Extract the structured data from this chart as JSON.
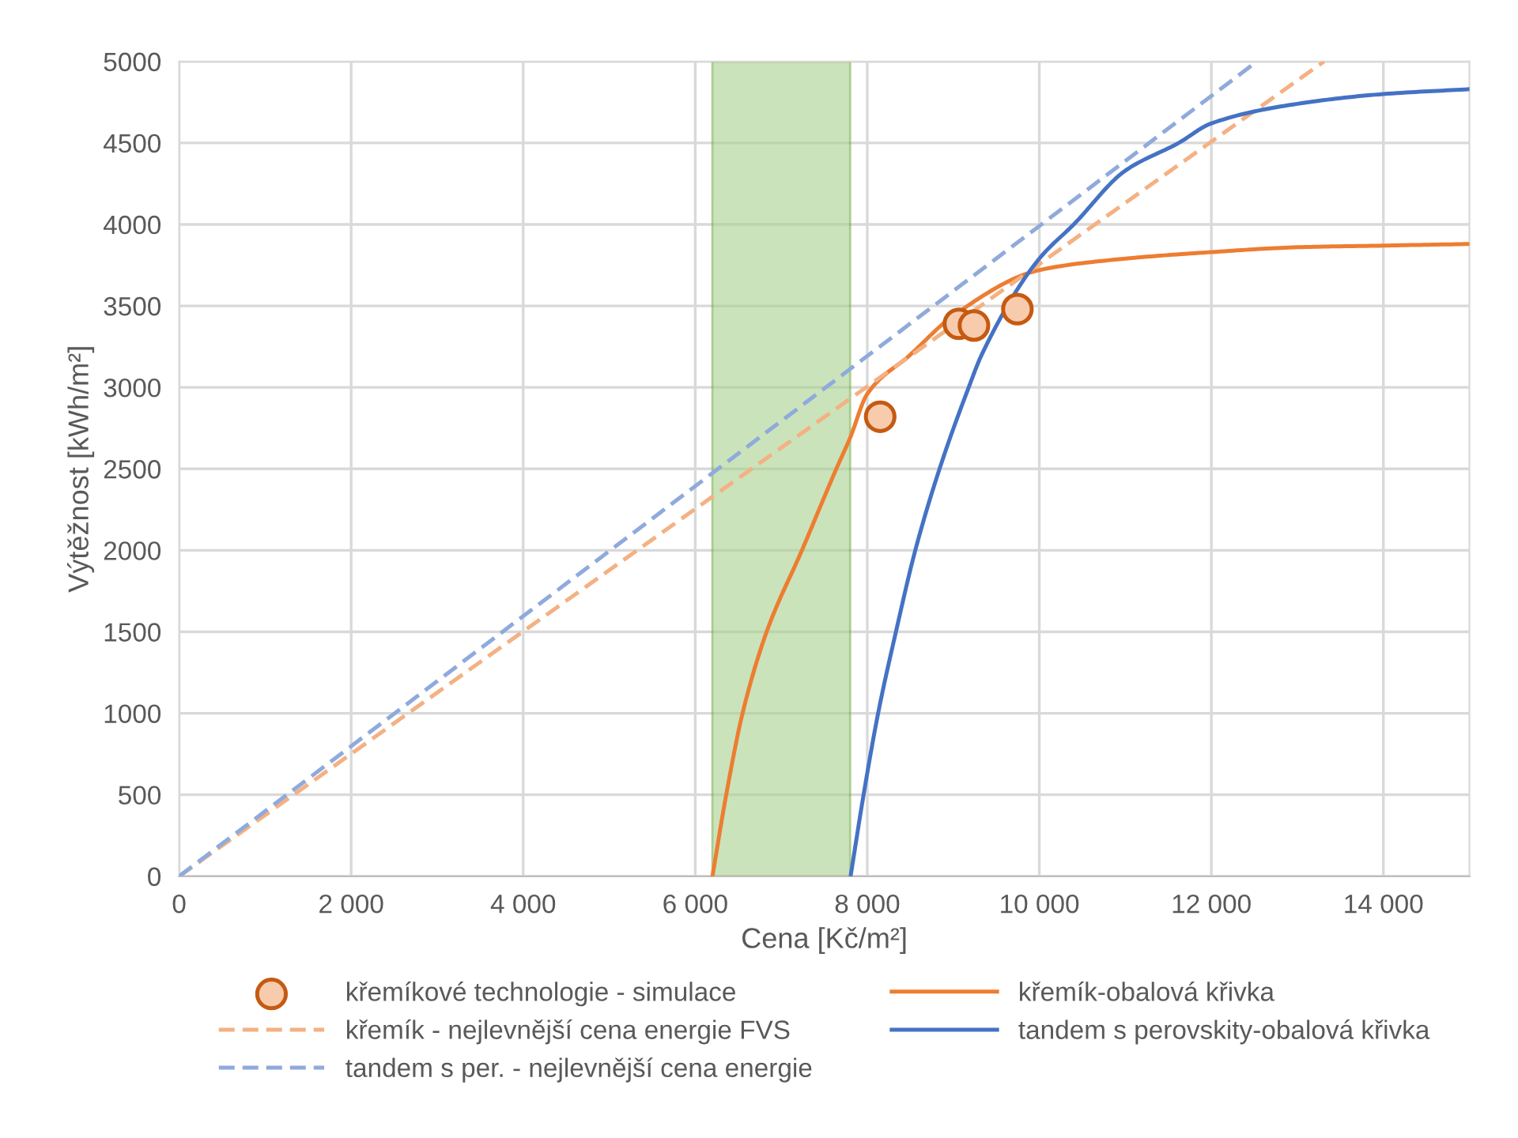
{
  "chart_data": {
    "type": "line",
    "xlabel": "Cena [Kč/m²]",
    "ylabel": "Výtěžnost [kWh/m²]",
    "xlim": [
      0,
      15000
    ],
    "ylim": [
      0,
      5000
    ],
    "xticks": [
      0,
      {
        "value": 2000,
        "label": "2 000"
      },
      {
        "value": 4000,
        "label": "4 000"
      },
      {
        "value": 6000,
        "label": "6 000"
      },
      {
        "value": 8000,
        "label": "8 000"
      },
      {
        "value": 10000,
        "label": "10 000"
      },
      {
        "value": 12000,
        "label": "12 000"
      },
      {
        "value": 14000,
        "label": "14 000"
      }
    ],
    "yticks": [
      0,
      500,
      1000,
      1500,
      2000,
      2500,
      3000,
      3500,
      4000,
      4500,
      5000
    ],
    "grid": true,
    "legend": "bottom",
    "bands": [
      {
        "axis": "x",
        "from": 6200,
        "to": 7800,
        "color": "#a9d18e"
      }
    ],
    "series": [
      {
        "name": "křemíkové technologie - simulace",
        "type": "scatter",
        "marker": "circle",
        "color": "#c55a11",
        "x": [
          8150,
          9065,
          9240,
          9745
        ],
        "values": [
          2820,
          3390,
          3380,
          3480
        ]
      },
      {
        "name": "křemík-obalová křivka",
        "color": "#ed7d31",
        "x": [
          6200,
          6360,
          6550,
          6830,
          7240,
          7640,
          7800,
          8000,
          8500,
          9000,
          10000,
          11000,
          12000,
          13000,
          14000,
          15000
        ],
        "values": [
          0,
          500,
          1000,
          1500,
          2000,
          2500,
          2690,
          2960,
          3200,
          3440,
          3720,
          3790,
          3830,
          3860,
          3870,
          3880
        ]
      },
      {
        "name": "křemík - nejlevnější cena energie FVS",
        "line_style": "dashed",
        "color": "#f4b183",
        "x": [
          0,
          13310
        ],
        "values": [
          0,
          5000
        ]
      },
      {
        "name": "tandem s perovskity-obalová křivka",
        "color": "#4472c4",
        "x": [
          7806,
          7957,
          8126,
          8333,
          8558,
          8840,
          9179,
          9330,
          10000,
          10400,
          11000,
          11620,
          12000,
          13000,
          14000,
          15000
        ],
        "values": [
          0,
          500,
          1000,
          1500,
          2000,
          2500,
          3000,
          3200,
          3790,
          4000,
          4330,
          4500,
          4620,
          4740,
          4800,
          4830
        ]
      },
      {
        "name": "tandem s per. - nejlevnější cena energie",
        "line_style": "dashed",
        "color": "#8faadc",
        "x": [
          0,
          12530
        ],
        "values": [
          0,
          5000
        ]
      }
    ]
  }
}
